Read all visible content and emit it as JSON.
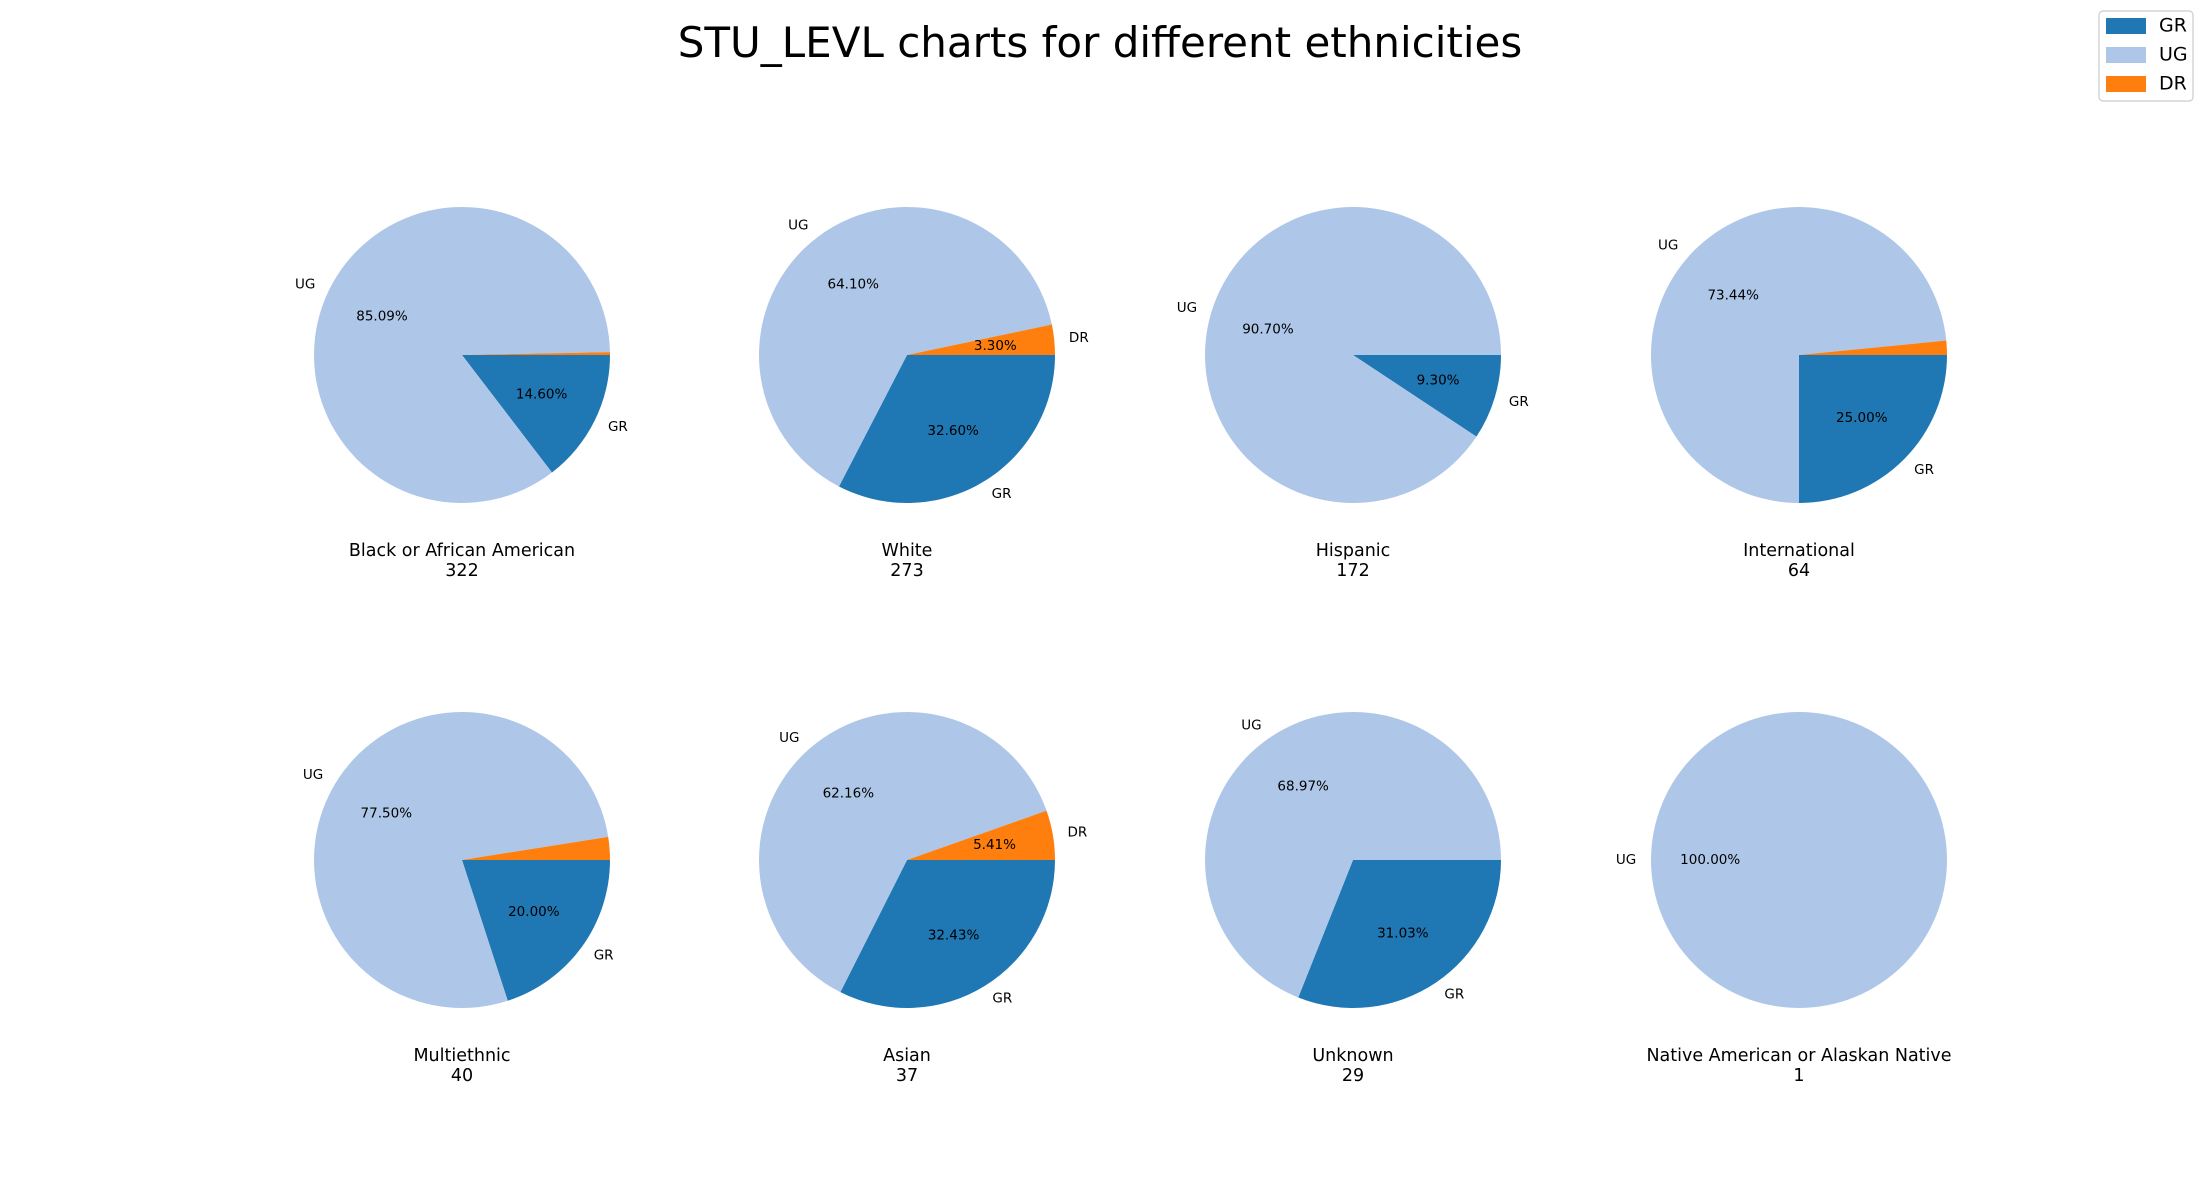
{
  "chart_data": {
    "type": "pie",
    "title": "STU_LEVL charts for different ethnicities",
    "colors": {
      "GR": "#1f77b4",
      "UG": "#aec7e8",
      "DR": "#ff7f0e"
    },
    "legend": {
      "position": "top-right",
      "entries": [
        "GR",
        "UG",
        "DR"
      ]
    },
    "charts": [
      {
        "name": "Black or African American",
        "count": "322",
        "slices": [
          {
            "label": "GR",
            "value": 14.6,
            "pct_text": "14.60%",
            "label_text": "GR"
          },
          {
            "label": "UG",
            "value": 85.09,
            "pct_text": "85.09%",
            "label_text": "UG"
          },
          {
            "label": "DR",
            "value": 0.31,
            "pct_text": "",
            "label_text": ""
          }
        ]
      },
      {
        "name": "White",
        "count": "273",
        "slices": [
          {
            "label": "GR",
            "value": 32.6,
            "pct_text": "32.60%",
            "label_text": "GR"
          },
          {
            "label": "UG",
            "value": 64.1,
            "pct_text": "64.10%",
            "label_text": "UG"
          },
          {
            "label": "DR",
            "value": 3.3,
            "pct_text": "3.30%",
            "label_text": "DR"
          }
        ]
      },
      {
        "name": "Hispanic",
        "count": "172",
        "slices": [
          {
            "label": "GR",
            "value": 9.3,
            "pct_text": "9.30%",
            "label_text": "GR"
          },
          {
            "label": "UG",
            "value": 90.7,
            "pct_text": "90.70%",
            "label_text": "UG"
          }
        ]
      },
      {
        "name": "International",
        "count": "64",
        "slices": [
          {
            "label": "GR",
            "value": 25.0,
            "pct_text": "25.00%",
            "label_text": "GR"
          },
          {
            "label": "UG",
            "value": 73.44,
            "pct_text": "73.44%",
            "label_text": "UG"
          },
          {
            "label": "DR",
            "value": 1.56,
            "pct_text": "",
            "label_text": ""
          }
        ]
      },
      {
        "name": "Multiethnic",
        "count": "40",
        "slices": [
          {
            "label": "GR",
            "value": 20.0,
            "pct_text": "20.00%",
            "label_text": "GR"
          },
          {
            "label": "UG",
            "value": 77.5,
            "pct_text": "77.50%",
            "label_text": "UG"
          },
          {
            "label": "DR",
            "value": 2.5,
            "pct_text": "",
            "label_text": ""
          }
        ]
      },
      {
        "name": "Asian",
        "count": "37",
        "slices": [
          {
            "label": "GR",
            "value": 32.43,
            "pct_text": "32.43%",
            "label_text": "GR"
          },
          {
            "label": "UG",
            "value": 62.16,
            "pct_text": "62.16%",
            "label_text": "UG"
          },
          {
            "label": "DR",
            "value": 5.41,
            "pct_text": "5.41%",
            "label_text": "DR"
          }
        ]
      },
      {
        "name": "Unknown",
        "count": "29",
        "slices": [
          {
            "label": "GR",
            "value": 31.03,
            "pct_text": "31.03%",
            "label_text": "GR"
          },
          {
            "label": "UG",
            "value": 68.97,
            "pct_text": "68.97%",
            "label_text": "UG"
          }
        ]
      },
      {
        "name": "Native American or Alaskan Native",
        "count": "1",
        "slices": [
          {
            "label": "UG",
            "value": 100.0,
            "pct_text": "100.00%",
            "label_text": "UG"
          }
        ]
      }
    ]
  }
}
